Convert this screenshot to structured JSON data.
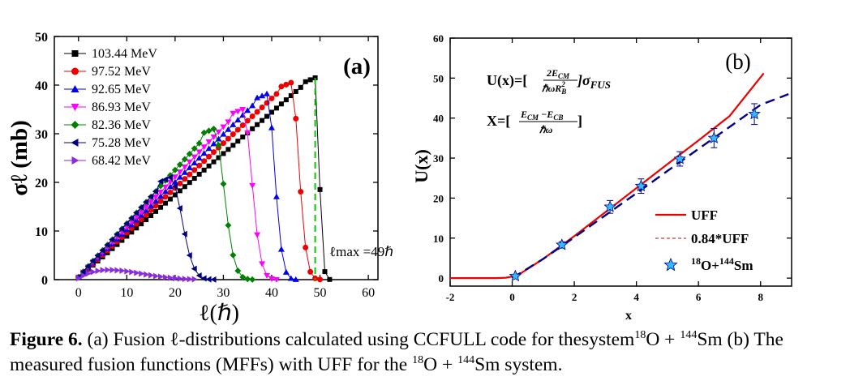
{
  "chart_data": [
    {
      "type": "line",
      "panel_label": "(a)",
      "xlabel": "ℓ(ℏ)",
      "ylabel": "σℓ (mb)",
      "xlim": [
        -5,
        62
      ],
      "ylim": [
        0,
        50
      ],
      "xticks": [
        "0",
        "10",
        "20",
        "30",
        "40",
        "50",
        "60"
      ],
      "yticks": [
        "0",
        "10",
        "20",
        "30",
        "40",
        "50"
      ],
      "legend_position": "top-left",
      "annotation": "ℓmax =49ℏ",
      "series": [
        {
          "name": "103.44 MeV",
          "color": "#000000",
          "marker": "square",
          "peak_l": 49,
          "peak_val": 41.5,
          "slope": 0.85,
          "cutoff_end": 52,
          "x": [
            0,
            1,
            2,
            3,
            4,
            5,
            6,
            7,
            8,
            9,
            10,
            11,
            12,
            13,
            14,
            15,
            16,
            17,
            18,
            19,
            20,
            21,
            22,
            23,
            24,
            25,
            26,
            27,
            28,
            29,
            30,
            31,
            32,
            33,
            34,
            35,
            36,
            37,
            38,
            39,
            40,
            41,
            42,
            43,
            44,
            45,
            46,
            47,
            48,
            49,
            50,
            51,
            52
          ]
        },
        {
          "name": "97.52 MeV",
          "color": "#ee0000",
          "marker": "circle",
          "peak_l": 44,
          "peak_val": 40.5,
          "slope": 0.92,
          "cutoff_end": 50
        },
        {
          "name": "92.65 MeV",
          "color": "#0000ee",
          "marker": "triangle-up",
          "peak_l": 39,
          "peak_val": 38.2,
          "slope": 0.98,
          "cutoff_end": 45
        },
        {
          "name": "86.93 MeV",
          "color": "#ff00ff",
          "marker": "triangle-down",
          "peak_l": 34,
          "peak_val": 35.0,
          "slope": 1.03,
          "cutoff_end": 41
        },
        {
          "name": "82.36 MeV",
          "color": "#008000",
          "marker": "diamond",
          "peak_l": 28,
          "peak_val": 31.0,
          "slope": 1.1,
          "cutoff_end": 36
        },
        {
          "name": "75.28 MeV",
          "color": "#000080",
          "marker": "triangle-left",
          "peak_l": 19,
          "peak_val": 21.0,
          "slope": 1.1,
          "cutoff_end": 28
        },
        {
          "name": "68.42 MeV",
          "color": "#8a2be2",
          "marker": "triangle-right",
          "peak_l": 6,
          "peak_val": 2.0,
          "slope": 0.35,
          "cutoff_end": 24
        }
      ],
      "vline": {
        "x": 49,
        "color": "#00cc00",
        "style": "dashed"
      }
    },
    {
      "type": "line",
      "panel_label": "(b)",
      "xlabel": "x",
      "ylabel": "U(x)",
      "xlim": [
        -2,
        9
      ],
      "ylim": [
        -2,
        60
      ],
      "xticks": [
        "-2",
        "0",
        "2",
        "4",
        "6",
        "8"
      ],
      "yticks": [
        "0",
        "10",
        "20",
        "30",
        "40",
        "50",
        "60"
      ],
      "formula_1": "U(x)=[",
      "formula_1_frac_num": "2E",
      "formula_1_num_sub": "CM",
      "formula_1_frac_den": "ℏωR",
      "formula_1_den_sub": "B",
      "formula_1_den_sup": "2",
      "formula_1_tail": "]σ",
      "formula_1_tail_sub": "FUS",
      "formula_2": "X=[",
      "formula_2_frac_num_a": "E",
      "formula_2_num_sub_a": "CM",
      "formula_2_frac_num_mid": " −E",
      "formula_2_num_sub_b": "CB",
      "formula_2_frac_den": "ℏω",
      "formula_2_tail": "]",
      "legend_position": "bottom-right",
      "legend": [
        {
          "label": "UFF",
          "color": "#ee0000",
          "style": "solid"
        },
        {
          "label": "0.84*UFF",
          "color": "#cc0000",
          "style": "dashed"
        },
        {
          "label": "18O+144Sm",
          "label_sup_1": "18",
          "label_mid": "O+",
          "label_sup_2": "144",
          "label_end": "Sm",
          "color": "#33bbff",
          "style": "star"
        }
      ],
      "series": [
        {
          "name": "UFF",
          "color": "#ee0000",
          "x": [
            -2,
            -0.5,
            -0.2,
            0,
            0.3,
            1,
            2,
            3,
            4,
            5,
            6,
            7,
            8.1
          ],
          "y": [
            0,
            0,
            0.1,
            0.4,
            1.3,
            4.8,
            10.5,
            16.5,
            22.5,
            28.5,
            34.4,
            40.5,
            51.2
          ]
        },
        {
          "name": "dashed-fit",
          "color": "#00008b",
          "x": [
            0,
            1,
            2,
            3,
            4,
            5,
            6,
            7,
            8,
            8.9
          ],
          "y": [
            0,
            4.8,
            10.2,
            15.7,
            21.2,
            26.8,
            32.3,
            37.8,
            43.3,
            46.0
          ]
        },
        {
          "name": "18O+144Sm",
          "color": "#33bbff",
          "x": [
            0.1,
            1.6,
            3.15,
            4.15,
            5.4,
            6.5,
            7.8
          ],
          "y": [
            0.5,
            8.3,
            17.8,
            23.0,
            29.8,
            35.0,
            41.0
          ],
          "err": [
            0.3,
            0.8,
            1.6,
            1.8,
            1.8,
            2.4,
            2.6
          ]
        }
      ]
    }
  ],
  "caption": {
    "label": "Figure 6.",
    "p1": " (a) Fusion ℓ-distributions calculated using CCFULL code for thesystem",
    "s1": "18",
    "p2": "O + ",
    "s2": "144",
    "p3": "Sm (b) The",
    "p4": "measured fusion functions (MFFs) with UFF for the ",
    "s3": "18",
    "p5": "O + ",
    "s4": "144",
    "p6": "Sm system."
  }
}
